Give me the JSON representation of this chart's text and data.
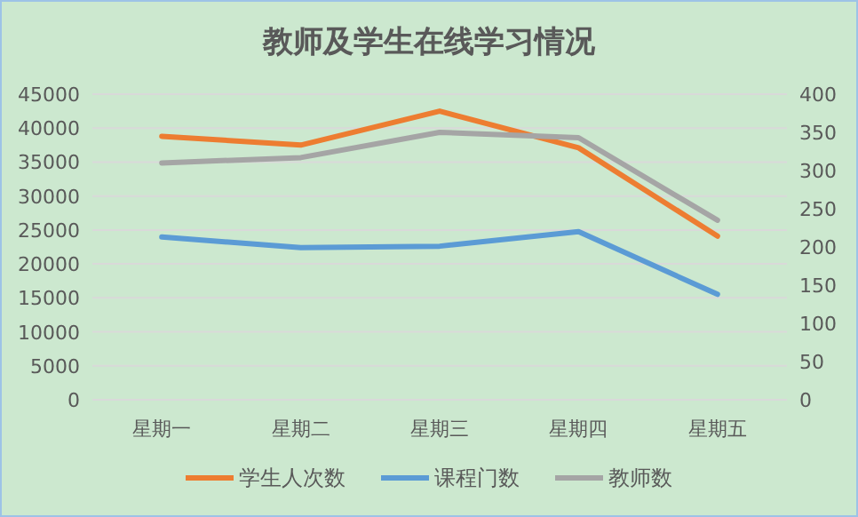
{
  "chart_data": {
    "type": "line",
    "title": "教师及学生在线学习情况",
    "categories": [
      "星期一",
      "星期二",
      "星期三",
      "星期四",
      "星期五"
    ],
    "series": [
      {
        "name": "学生人次数",
        "color": "#ed7d31",
        "values": [
          38800,
          37500,
          42500,
          37100,
          24100
        ]
      },
      {
        "name": "课程门数",
        "color": "#5b9bd5",
        "axis": "y2",
        "values": [
          213,
          199,
          201,
          220,
          138
        ]
      },
      {
        "name": "教师数",
        "color": "#a5a5a5",
        "axis": "y2",
        "values": [
          310,
          317,
          350,
          343,
          235
        ]
      }
    ],
    "ylim": [
      0,
      45000
    ],
    "yticks": [
      0,
      5000,
      10000,
      15000,
      20000,
      25000,
      30000,
      35000,
      40000,
      45000
    ],
    "y2lim": [
      0,
      400
    ],
    "y2ticks": [
      0,
      50,
      100,
      150,
      200,
      250,
      300,
      350,
      400
    ],
    "grid": "y",
    "legend": "bottom",
    "marker": "none",
    "line_style": "solid"
  }
}
